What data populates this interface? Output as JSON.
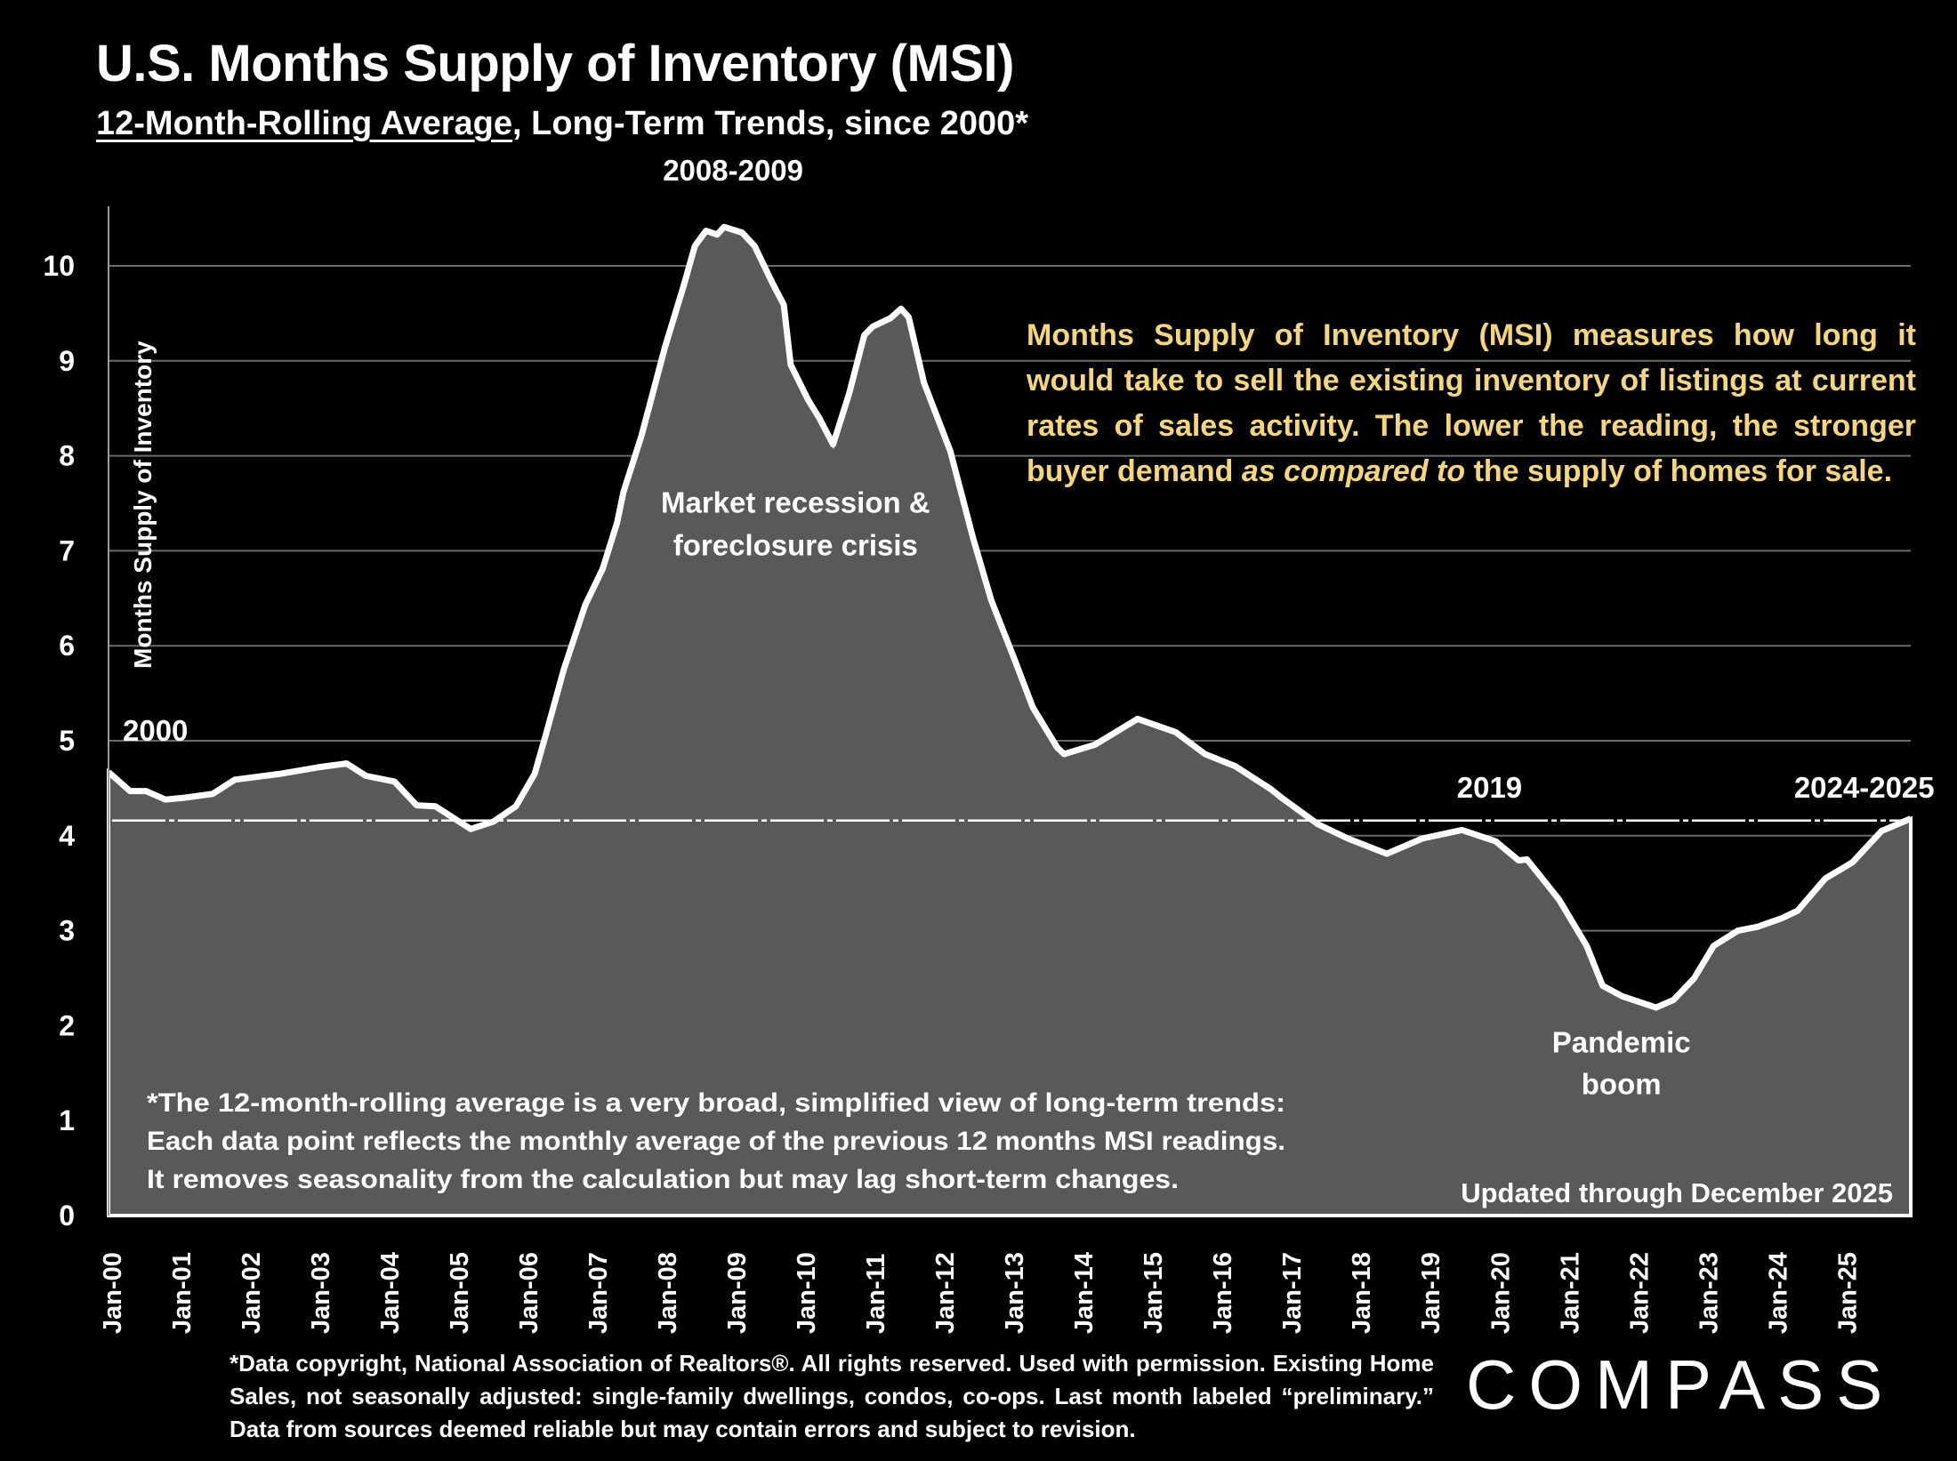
{
  "header": {
    "title": "U.S. Months Supply of Inventory (MSI)",
    "subtitle_underlined": "12-Month-Rolling Average",
    "subtitle_rest": ", Long-Term Trends, since 2000*"
  },
  "explanation": {
    "part1": "Months Supply of Inventory (MSI) measures how long it would take to sell the existing inventory of listings at current rates of sales activity. The lower the reading, the stronger buyer demand ",
    "emphasis": "as compared to",
    "part2": " the supply of homes for sale."
  },
  "footnote": "*Data copyright, National Association of Realtors®. All rights reserved. Used with permission. Existing Home Sales, not seasonally adjusted:  single-family dwellings, condos, co-ops. Last month labeled “preliminary.” Data from sources deemed reliable but may contain errors and subject to revision.",
  "logo": "COMPASS",
  "colors": {
    "background": "#000000",
    "area_fill": "#595959",
    "line": "#ffffff",
    "gridline": "#6b6b6b",
    "explanation_text": "#F5D77A"
  },
  "chart_data": {
    "type": "area",
    "title": "U.S. Months Supply of Inventory (MSI)",
    "subtitle": "12-Month-Rolling Average, Long-Term Trends, since 2000*",
    "ylabel": "Months Supply of Inventory",
    "xlabel": "",
    "ylim": [
      0,
      10.5
    ],
    "xlim": [
      2000.0,
      2025.97
    ],
    "yticks": [
      0,
      1,
      2,
      3,
      4,
      5,
      6,
      7,
      8,
      9,
      10
    ],
    "grid": true,
    "xtick_labels": [
      "Jan-00",
      "Jan-01",
      "Jan-02",
      "Jan-03",
      "Jan-04",
      "Jan-05",
      "Jan-06",
      "Jan-07",
      "Jan-08",
      "Jan-09",
      "Jan-10",
      "Jan-11",
      "Jan-12",
      "Jan-13",
      "Jan-14",
      "Jan-15",
      "Jan-16",
      "Jan-17",
      "Jan-18",
      "Jan-19",
      "Jan-20",
      "Jan-21",
      "Jan-22",
      "Jan-23",
      "Jan-24",
      "Jan-25"
    ],
    "reference_line": {
      "value": 4.16,
      "style": "dashed"
    },
    "series": [
      {
        "name": "MSI 12-month rolling average",
        "x": [
          2000.0,
          2000.31,
          2000.54,
          2000.82,
          2001.09,
          2001.5,
          2001.82,
          2002.46,
          2003.02,
          2003.43,
          2003.71,
          2004.12,
          2004.44,
          2004.71,
          2005.22,
          2005.55,
          2005.87,
          2006.14,
          2006.3,
          2006.56,
          2006.87,
          2007.12,
          2007.33,
          2007.42,
          2007.68,
          2008.02,
          2008.28,
          2008.45,
          2008.61,
          2008.77,
          2008.87,
          2009.13,
          2009.31,
          2009.56,
          2009.73,
          2009.83,
          2010.08,
          2010.24,
          2010.44,
          2010.67,
          2010.89,
          2011.01,
          2011.27,
          2011.42,
          2011.53,
          2011.75,
          2012.13,
          2012.46,
          2012.72,
          2013.07,
          2013.32,
          2013.67,
          2013.77,
          2014.22,
          2014.83,
          2015.38,
          2015.8,
          2016.24,
          2016.75,
          2016.92,
          2017.43,
          2017.86,
          2018.42,
          2018.93,
          2019.5,
          2019.99,
          2020.32,
          2020.44,
          2020.9,
          2021.3,
          2021.53,
          2021.81,
          2022.3,
          2022.55,
          2022.85,
          2023.13,
          2023.48,
          2023.76,
          2024.11,
          2024.34,
          2024.74,
          2024.97,
          2025.13,
          2025.55,
          2025.97
        ],
        "values": [
          4.67,
          4.47,
          4.47,
          4.38,
          4.4,
          4.44,
          4.59,
          4.65,
          4.72,
          4.76,
          4.63,
          4.57,
          4.32,
          4.31,
          4.07,
          4.15,
          4.31,
          4.65,
          5.06,
          5.75,
          6.43,
          6.81,
          7.3,
          7.62,
          8.21,
          9.15,
          9.77,
          10.21,
          10.37,
          10.33,
          10.41,
          10.35,
          10.21,
          9.83,
          9.59,
          8.96,
          8.59,
          8.4,
          8.12,
          8.65,
          9.27,
          9.36,
          9.45,
          9.55,
          9.46,
          8.77,
          8.05,
          7.13,
          6.48,
          5.83,
          5.35,
          4.93,
          4.86,
          4.96,
          5.23,
          5.09,
          4.86,
          4.73,
          4.49,
          4.39,
          4.12,
          3.97,
          3.81,
          3.97,
          4.06,
          3.94,
          3.74,
          3.75,
          3.33,
          2.84,
          2.42,
          2.31,
          2.19,
          2.27,
          2.5,
          2.84,
          3.0,
          3.04,
          3.13,
          3.21,
          3.55,
          3.65,
          3.72,
          4.05,
          4.18
        ]
      }
    ],
    "annotations": [
      {
        "id": "a2000",
        "text": "2000",
        "x": 2000.6,
        "y": 5.0
      },
      {
        "id": "a2008",
        "text": "2008-2009",
        "x": 2009.0,
        "y": 10.9
      },
      {
        "id": "recession1",
        "text": "Market recession &",
        "x": 2009.9,
        "y": 7.4
      },
      {
        "id": "recession2",
        "text": "foreclosure crisis",
        "x": 2009.9,
        "y": 6.95
      },
      {
        "id": "a2019",
        "text": "2019",
        "x": 2019.9,
        "y": 4.4
      },
      {
        "id": "a2024",
        "text": "2024-2025",
        "x": 2025.3,
        "y": 4.4
      },
      {
        "id": "pandemic1",
        "text": "Pandemic",
        "x": 2021.8,
        "y": 1.72
      },
      {
        "id": "pandemic2",
        "text": "boom",
        "x": 2021.8,
        "y": 1.28
      }
    ],
    "notes": [
      "*The 12-month-rolling average is a very broad, simplified view of long-term trends:",
      "Each data point reflects the monthly average of the previous 12 months MSI readings.",
      "It removes seasonality from the calculation but may lag short-term changes."
    ],
    "updated_label": "Updated through December 2025"
  }
}
